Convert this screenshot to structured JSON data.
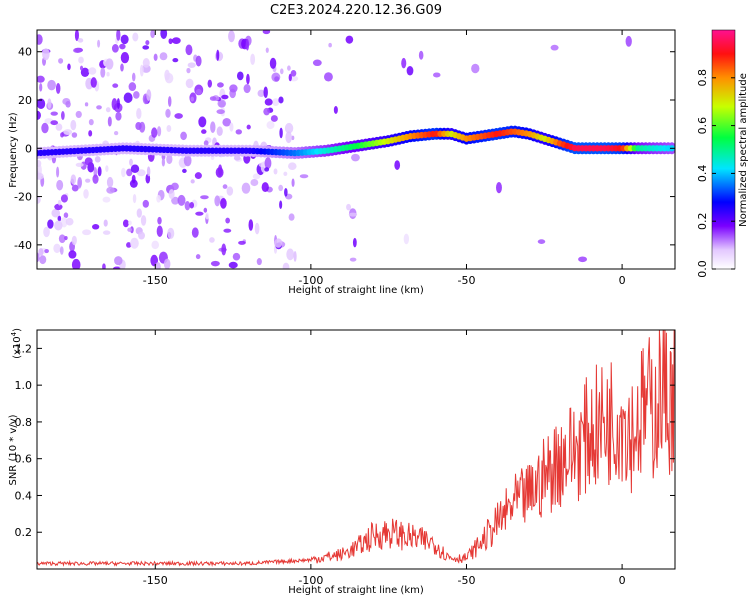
{
  "title": "C2E3.2024.220.12.36.G09",
  "chart_data": [
    {
      "type": "heatmap",
      "xlabel": "Height of straight line (km)",
      "ylabel": "Frequency (Hz)",
      "xlim": [
        -188,
        17
      ],
      "ylim": [
        -50,
        49
      ],
      "x_ticks": [
        -150,
        -100,
        -50,
        0
      ],
      "y_ticks": [
        -40,
        -20,
        0,
        20,
        40
      ],
      "grid": false,
      "colorbar": {
        "label": "Normalized spectral amplitude",
        "range": [
          0,
          1
        ],
        "ticks": [
          "0.0",
          "0.2",
          "0.4",
          "0.6",
          "0.8"
        ]
      },
      "ridge": {
        "x": [
          -188,
          -160,
          -140,
          -120,
          -105,
          -95,
          -85,
          -75,
          -68,
          -60,
          -55,
          -50,
          -45,
          -40,
          -35,
          -30,
          -25,
          -20,
          -15,
          -10,
          -5,
          0,
          5,
          10,
          17
        ],
        "frequency": [
          -2,
          0,
          -1,
          -1,
          -2,
          -1,
          1,
          3,
          5,
          6,
          6,
          4,
          5,
          6,
          7,
          6,
          4,
          2,
          0,
          0,
          0,
          0,
          0,
          0,
          0
        ],
        "amplitude": [
          0.25,
          0.25,
          0.25,
          0.25,
          0.35,
          0.45,
          0.55,
          0.7,
          0.8,
          0.9,
          0.7,
          0.8,
          0.85,
          0.9,
          0.85,
          0.8,
          0.7,
          0.85,
          0.95,
          0.95,
          0.95,
          0.9,
          0.5,
          0.45,
          0.4
        ]
      }
    },
    {
      "type": "line",
      "xlabel": "Height of straight line (km)",
      "ylabel": "SNR (10 * v/v)",
      "y_multiplier": "(x10",
      "y_multiplier_exp": "4",
      "xlim": [
        -188,
        17
      ],
      "ylim": [
        0,
        1.3
      ],
      "x_ticks": [
        -150,
        -100,
        -50,
        0
      ],
      "y_ticks": [
        "0.2",
        "0.4",
        "0.6",
        "0.8",
        "1.0",
        "1.2"
      ],
      "color": "#e53935",
      "series": [
        {
          "x": [
            -188,
            -175,
            -160,
            -140,
            -120,
            -110,
            -100,
            -90,
            -85,
            -80,
            -75,
            -70,
            -65,
            -60,
            -57,
            -55,
            -50,
            -45,
            -40,
            -35,
            -30,
            -25,
            -20,
            -15,
            -10,
            -5,
            0,
            3,
            5,
            8,
            10,
            13,
            15,
            17
          ],
          "values": [
            0.03,
            0.03,
            0.03,
            0.03,
            0.03,
            0.04,
            0.05,
            0.08,
            0.12,
            0.18,
            0.2,
            0.18,
            0.16,
            0.14,
            0.08,
            0.06,
            0.06,
            0.15,
            0.25,
            0.35,
            0.4,
            0.5,
            0.6,
            0.65,
            0.75,
            0.8,
            0.85,
            0.75,
            0.8,
            0.9,
            0.85,
            1.0,
            0.9,
            1.0
          ]
        }
      ]
    }
  ]
}
